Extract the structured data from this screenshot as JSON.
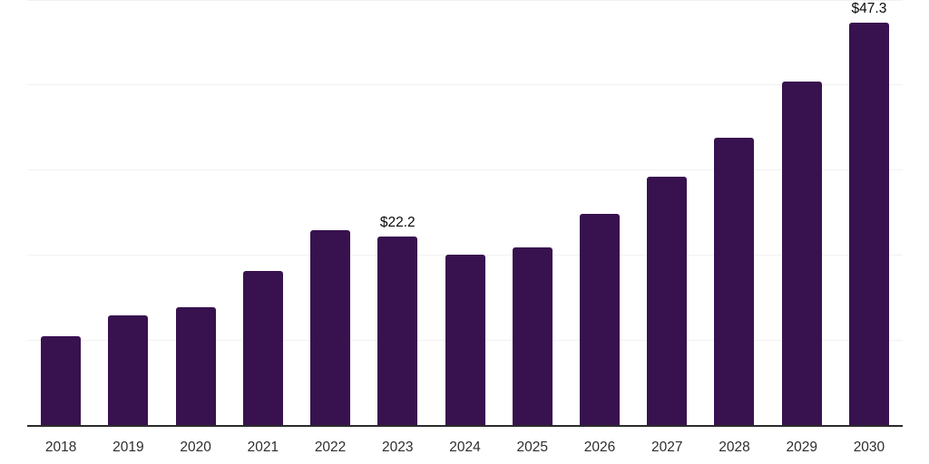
{
  "chart_data": {
    "type": "bar",
    "categories": [
      "2018",
      "2019",
      "2020",
      "2021",
      "2022",
      "2023",
      "2024",
      "2025",
      "2026",
      "2027",
      "2028",
      "2029",
      "2030"
    ],
    "values": [
      10.5,
      12.9,
      13.9,
      18.1,
      22.9,
      22.2,
      20.0,
      20.9,
      24.8,
      29.2,
      33.8,
      40.4,
      47.3
    ],
    "bar_labels": [
      "",
      "",
      "",
      "",
      "",
      "$22.2",
      "",
      "",
      "",
      "",
      "",
      "",
      "$47.3"
    ],
    "ylim": [
      0,
      50
    ],
    "grid": true,
    "gridline_values": [
      10,
      20,
      30,
      40,
      50
    ],
    "legend": "none",
    "colors": {
      "bar": "#38124f",
      "axis_line": "#2b2b2b",
      "gridline": "#f2f2f2",
      "tick_label": "#2e2e2e",
      "data_label": "#0a0a0a",
      "background": "#ffffff"
    }
  }
}
